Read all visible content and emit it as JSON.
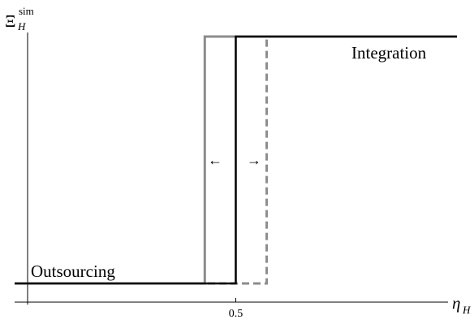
{
  "chart_data": {
    "type": "line",
    "y_axis_label": {
      "symbol": "Ξ",
      "superscript": "sim",
      "subscript": "H"
    },
    "x_axis_label": {
      "symbol": "η",
      "subscript": "H"
    },
    "x_ticks": [
      {
        "value": 0.5,
        "label": "0.5"
      }
    ],
    "xlim": [
      0,
      1
    ],
    "ylim": [
      0,
      1
    ],
    "grid": false,
    "series": [
      {
        "style": "solid-black",
        "color": "#000000",
        "threshold": 0.5,
        "x": [
          0,
          0.5,
          0.5,
          1
        ],
        "y": [
          0,
          0,
          1,
          1
        ]
      },
      {
        "style": "solid-gray",
        "color": "#8c8c8c",
        "threshold": 0.43,
        "x": [
          0,
          0.43,
          0.43,
          1
        ],
        "y": [
          0,
          0,
          1,
          1
        ]
      },
      {
        "style": "dashed-gray",
        "color": "#8c8c8c",
        "threshold": 0.57,
        "x": [
          0,
          0.57,
          0.57,
          1
        ],
        "y": [
          0,
          0,
          1,
          1
        ]
      }
    ],
    "annotations": {
      "lower_regime": "Outsourcing",
      "upper_regime": "Integration",
      "left_arrow": "←",
      "right_arrow": "→"
    }
  }
}
